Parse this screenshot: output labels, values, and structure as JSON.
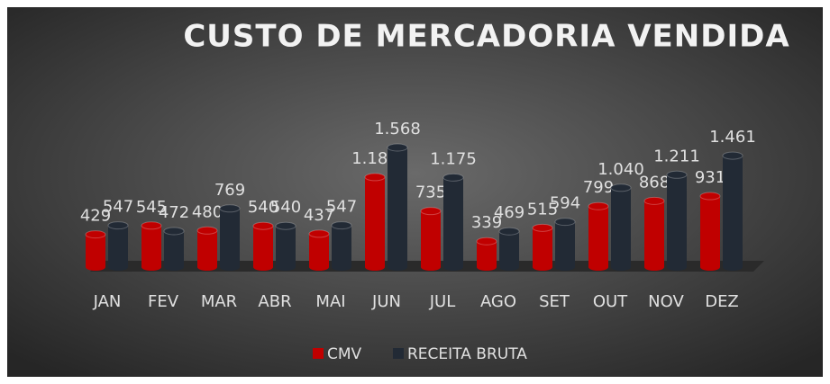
{
  "chart_data": {
    "type": "bar",
    "title": "CUSTO DE MERCADORIA VENDIDA",
    "categories": [
      "JAN",
      "FEV",
      "MAR",
      "ABR",
      "MAI",
      "JUN",
      "JUL",
      "AGO",
      "SET",
      "OUT",
      "NOV",
      "DEZ"
    ],
    "series": [
      {
        "name": "CMV",
        "color": "#c00000",
        "values": [
          429,
          545,
          480,
          540,
          437,
          1180,
          735,
          339,
          515,
          799,
          868,
          931
        ],
        "value_labels": [
          "429",
          "545",
          "480",
          "540",
          "437",
          "1.180",
          "735",
          "339",
          "515",
          "799",
          "868",
          "931"
        ]
      },
      {
        "name": "RECEITA BRUTA",
        "color": "#222a35",
        "values": [
          547,
          472,
          769,
          540,
          547,
          1568,
          1175,
          469,
          594,
          1040,
          1211,
          1461
        ],
        "value_labels": [
          "547",
          "472",
          "769",
          "540",
          "547",
          "1.568",
          "1.175",
          "469",
          "594",
          "1.040",
          "1.211",
          "1.461"
        ]
      }
    ],
    "legend": "bottom"
  }
}
